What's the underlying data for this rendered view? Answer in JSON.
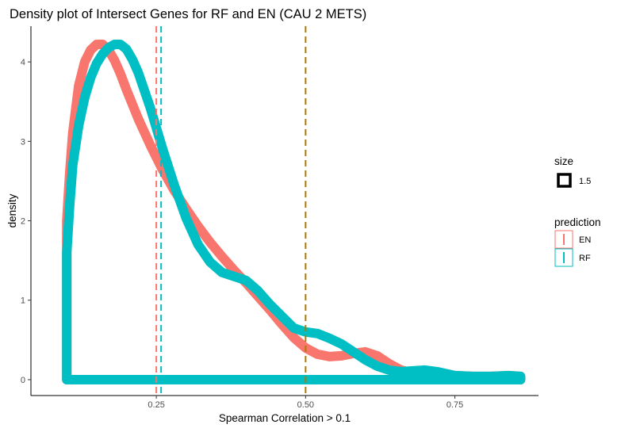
{
  "chart_data": {
    "type": "area",
    "title": "Density plot of Intersect Genes for RF and EN (CAU 2 METS)",
    "xlabel": "Spearman Correlation > 0.1",
    "ylabel": "density",
    "xlim": [
      0.04,
      0.89
    ],
    "ylim": [
      -0.2,
      4.45
    ],
    "x_ticks": [
      0.25,
      0.5,
      0.75
    ],
    "x_tick_labels": [
      "0.25",
      "0.50",
      "0.75"
    ],
    "y_ticks": [
      0,
      1,
      2,
      3,
      4
    ],
    "y_tick_labels": [
      "0",
      "1",
      "2",
      "3",
      "4"
    ],
    "grid": false,
    "legend_position": "right",
    "series": [
      {
        "name": "EN",
        "color": "#F8766D",
        "x": [
          0.1,
          0.105,
          0.11,
          0.12,
          0.13,
          0.14,
          0.15,
          0.16,
          0.17,
          0.18,
          0.19,
          0.2,
          0.22,
          0.24,
          0.26,
          0.28,
          0.3,
          0.32,
          0.34,
          0.36,
          0.38,
          0.4,
          0.42,
          0.44,
          0.46,
          0.48,
          0.5,
          0.52,
          0.54,
          0.56,
          0.58,
          0.6,
          0.62,
          0.64,
          0.66,
          0.68,
          0.7,
          0.72,
          0.75,
          0.78,
          0.81,
          0.84,
          0.86
        ],
        "y": [
          2.0,
          2.6,
          3.1,
          3.7,
          4.0,
          4.15,
          4.22,
          4.22,
          4.15,
          4.02,
          3.85,
          3.65,
          3.28,
          2.95,
          2.65,
          2.38,
          2.15,
          1.93,
          1.73,
          1.55,
          1.38,
          1.22,
          1.05,
          0.88,
          0.7,
          0.53,
          0.4,
          0.32,
          0.29,
          0.3,
          0.33,
          0.35,
          0.3,
          0.2,
          0.12,
          0.08,
          0.07,
          0.06,
          0.05,
          0.04,
          0.04,
          0.05,
          0.04
        ]
      },
      {
        "name": "RF",
        "color": "#00BFC4",
        "x": [
          0.1,
          0.105,
          0.11,
          0.12,
          0.13,
          0.14,
          0.15,
          0.16,
          0.17,
          0.18,
          0.19,
          0.2,
          0.21,
          0.22,
          0.24,
          0.26,
          0.28,
          0.3,
          0.32,
          0.34,
          0.36,
          0.38,
          0.4,
          0.42,
          0.44,
          0.46,
          0.48,
          0.5,
          0.52,
          0.54,
          0.56,
          0.58,
          0.6,
          0.62,
          0.64,
          0.66,
          0.68,
          0.7,
          0.72,
          0.75,
          0.78,
          0.81,
          0.84,
          0.86
        ],
        "y": [
          1.6,
          2.2,
          2.7,
          3.2,
          3.55,
          3.8,
          3.98,
          4.1,
          4.18,
          4.22,
          4.22,
          4.16,
          4.03,
          3.86,
          3.42,
          2.92,
          2.45,
          2.03,
          1.7,
          1.48,
          1.35,
          1.3,
          1.25,
          1.12,
          0.95,
          0.8,
          0.65,
          0.6,
          0.58,
          0.52,
          0.45,
          0.35,
          0.25,
          0.17,
          0.12,
          0.1,
          0.11,
          0.12,
          0.1,
          0.05,
          0.04,
          0.04,
          0.05,
          0.04
        ]
      }
    ],
    "vlines": [
      {
        "x": 0.25,
        "color": "#F8766D"
      },
      {
        "x": 0.258,
        "color": "#00BFC4"
      },
      {
        "x": 0.5,
        "color": "#B07800"
      }
    ],
    "legend": {
      "size_title": "size",
      "size_label": "1.5",
      "prediction_title": "prediction",
      "items": [
        {
          "label": "EN",
          "color": "#F8766D"
        },
        {
          "label": "RF",
          "color": "#00BFC4"
        }
      ]
    }
  }
}
